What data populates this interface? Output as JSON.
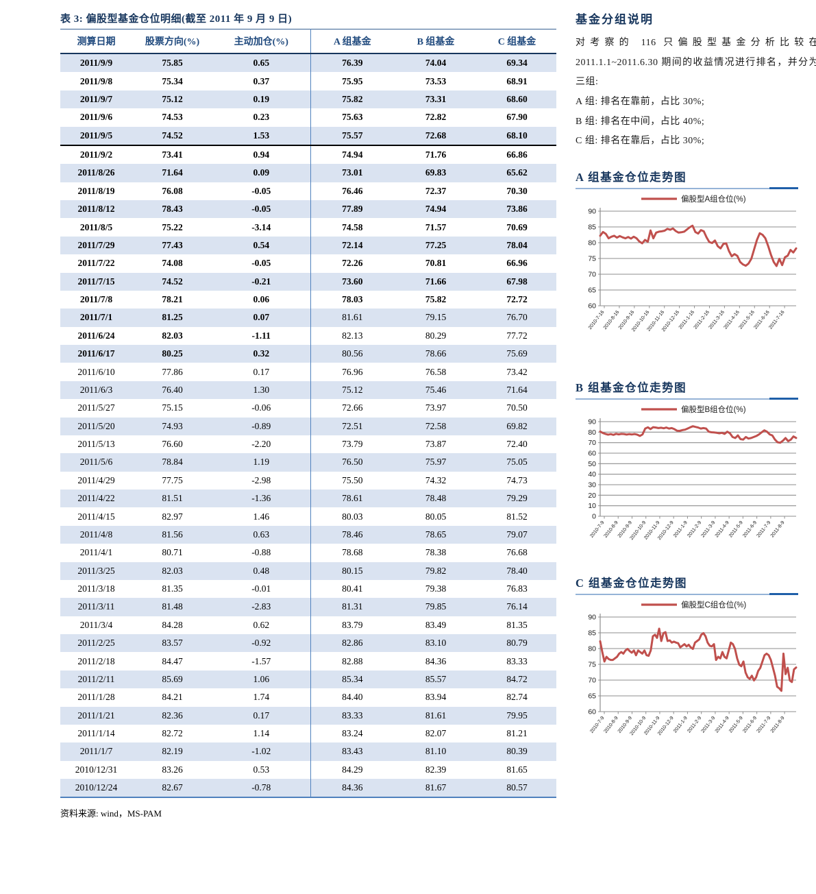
{
  "colors": {
    "navy": "#17365D",
    "header_blue": "#1F497D",
    "steel_blue": "#4F81BD",
    "row_shade": "#DAE3F1",
    "series_red": "#C0504D"
  },
  "table": {
    "title": "表 3:  偏股型基金仓位明细(截至 2011 年 9 月 9 日)",
    "columns": [
      "测算日期",
      "股票方向(%)",
      "主动加仓(%)",
      "A 组基金",
      "B 组基金",
      "C 组基金"
    ],
    "rows": [
      {
        "date": "2011/9/9",
        "dir": "75.85",
        "add": "0.65",
        "a": "76.39",
        "b": "74.04",
        "c": "69.34",
        "bold": "all"
      },
      {
        "date": "2011/9/8",
        "dir": "75.34",
        "add": "0.37",
        "a": "75.95",
        "b": "73.53",
        "c": "68.91",
        "bold": "all"
      },
      {
        "date": "2011/9/7",
        "dir": "75.12",
        "add": "0.19",
        "a": "75.82",
        "b": "73.31",
        "c": "68.60",
        "bold": "all"
      },
      {
        "date": "2011/9/6",
        "dir": "74.53",
        "add": "0.23",
        "a": "75.63",
        "b": "72.82",
        "c": "67.90",
        "bold": "all"
      },
      {
        "date": "2011/9/5",
        "dir": "74.52",
        "add": "1.53",
        "a": "75.57",
        "b": "72.68",
        "c": "68.10",
        "bold": "all",
        "sep": true
      },
      {
        "date": "2011/9/2",
        "dir": "73.41",
        "add": "0.94",
        "a": "74.94",
        "b": "71.76",
        "c": "66.86",
        "bold": "all"
      },
      {
        "date": "2011/8/26",
        "dir": "71.64",
        "add": "0.09",
        "a": "73.01",
        "b": "69.83",
        "c": "65.62",
        "bold": "all"
      },
      {
        "date": "2011/8/19",
        "dir": "76.08",
        "add": "-0.05",
        "a": "76.46",
        "b": "72.37",
        "c": "70.30",
        "bold": "all"
      },
      {
        "date": "2011/8/12",
        "dir": "78.43",
        "add": "-0.05",
        "a": "77.89",
        "b": "74.94",
        "c": "73.86",
        "bold": "all"
      },
      {
        "date": "2011/8/5",
        "dir": "75.22",
        "add": "-3.14",
        "a": "74.58",
        "b": "71.57",
        "c": "70.69",
        "bold": "all"
      },
      {
        "date": "2011/7/29",
        "dir": "77.43",
        "add": "0.54",
        "a": "72.14",
        "b": "77.25",
        "c": "78.04",
        "bold": "all"
      },
      {
        "date": "2011/7/22",
        "dir": "74.08",
        "add": "-0.05",
        "a": "72.26",
        "b": "70.81",
        "c": "66.96",
        "bold": "all"
      },
      {
        "date": "2011/7/15",
        "dir": "74.52",
        "add": "-0.21",
        "a": "73.60",
        "b": "71.66",
        "c": "67.98",
        "bold": "all"
      },
      {
        "date": "2011/7/8",
        "dir": "78.21",
        "add": "0.06",
        "a": "78.03",
        "b": "75.82",
        "c": "72.72",
        "bold": "all"
      },
      {
        "date": "2011/7/1",
        "dir": "81.25",
        "add": "0.07",
        "a": "81.61",
        "b": "79.15",
        "c": "76.70",
        "bold": "left"
      },
      {
        "date": "2011/6/24",
        "dir": "82.03",
        "add": "-1.11",
        "a": "82.13",
        "b": "80.29",
        "c": "77.72",
        "bold": "left"
      },
      {
        "date": "2011/6/17",
        "dir": "80.25",
        "add": "0.32",
        "a": "80.56",
        "b": "78.66",
        "c": "75.69",
        "bold": "left"
      },
      {
        "date": "2011/6/10",
        "dir": "77.86",
        "add": "0.17",
        "a": "76.96",
        "b": "76.58",
        "c": "73.42",
        "bold": "none"
      },
      {
        "date": "2011/6/3",
        "dir": "76.40",
        "add": "1.30",
        "a": "75.12",
        "b": "75.46",
        "c": "71.64",
        "bold": "none"
      },
      {
        "date": "2011/5/27",
        "dir": "75.15",
        "add": "-0.06",
        "a": "72.66",
        "b": "73.97",
        "c": "70.50",
        "bold": "none"
      },
      {
        "date": "2011/5/20",
        "dir": "74.93",
        "add": "-0.89",
        "a": "72.51",
        "b": "72.58",
        "c": "69.82",
        "bold": "none"
      },
      {
        "date": "2011/5/13",
        "dir": "76.60",
        "add": "-2.20",
        "a": "73.79",
        "b": "73.87",
        "c": "72.40",
        "bold": "none"
      },
      {
        "date": "2011/5/6",
        "dir": "78.84",
        "add": "1.19",
        "a": "76.50",
        "b": "75.97",
        "c": "75.05",
        "bold": "none"
      },
      {
        "date": "2011/4/29",
        "dir": "77.75",
        "add": "-2.98",
        "a": "75.50",
        "b": "74.32",
        "c": "74.73",
        "bold": "none"
      },
      {
        "date": "2011/4/22",
        "dir": "81.51",
        "add": "-1.36",
        "a": "78.61",
        "b": "78.48",
        "c": "79.29",
        "bold": "none"
      },
      {
        "date": "2011/4/15",
        "dir": "82.97",
        "add": "1.46",
        "a": "80.03",
        "b": "80.05",
        "c": "81.52",
        "bold": "none"
      },
      {
        "date": "2011/4/8",
        "dir": "81.56",
        "add": "0.63",
        "a": "78.46",
        "b": "78.65",
        "c": "79.07",
        "bold": "none"
      },
      {
        "date": "2011/4/1",
        "dir": "80.71",
        "add": "-0.88",
        "a": "78.68",
        "b": "78.38",
        "c": "76.68",
        "bold": "none"
      },
      {
        "date": "2011/3/25",
        "dir": "82.03",
        "add": "0.48",
        "a": "80.15",
        "b": "79.82",
        "c": "78.40",
        "bold": "none"
      },
      {
        "date": "2011/3/18",
        "dir": "81.35",
        "add": "-0.01",
        "a": "80.41",
        "b": "79.38",
        "c": "76.83",
        "bold": "none"
      },
      {
        "date": "2011/3/11",
        "dir": "81.48",
        "add": "-2.83",
        "a": "81.31",
        "b": "79.85",
        "c": "76.14",
        "bold": "none"
      },
      {
        "date": "2011/3/4",
        "dir": "84.28",
        "add": "0.62",
        "a": "83.79",
        "b": "83.49",
        "c": "81.35",
        "bold": "none"
      },
      {
        "date": "2011/2/25",
        "dir": "83.57",
        "add": "-0.92",
        "a": "82.86",
        "b": "83.10",
        "c": "80.79",
        "bold": "none"
      },
      {
        "date": "2011/2/18",
        "dir": "84.47",
        "add": "-1.57",
        "a": "82.88",
        "b": "84.36",
        "c": "83.33",
        "bold": "none"
      },
      {
        "date": "2011/2/11",
        "dir": "85.69",
        "add": "1.06",
        "a": "85.34",
        "b": "85.57",
        "c": "84.72",
        "bold": "none"
      },
      {
        "date": "2011/1/28",
        "dir": "84.21",
        "add": "1.74",
        "a": "84.40",
        "b": "83.94",
        "c": "82.74",
        "bold": "none"
      },
      {
        "date": "2011/1/21",
        "dir": "82.36",
        "add": "0.17",
        "a": "83.33",
        "b": "81.61",
        "c": "79.95",
        "bold": "none"
      },
      {
        "date": "2011/1/14",
        "dir": "82.72",
        "add": "1.14",
        "a": "83.24",
        "b": "82.07",
        "c": "81.21",
        "bold": "none"
      },
      {
        "date": "2011/1/7",
        "dir": "82.19",
        "add": "-1.02",
        "a": "83.43",
        "b": "81.10",
        "c": "80.39",
        "bold": "none"
      },
      {
        "date": "2010/12/31",
        "dir": "83.26",
        "add": "0.53",
        "a": "84.29",
        "b": "82.39",
        "c": "81.65",
        "bold": "none"
      },
      {
        "date": "2010/12/24",
        "dir": "82.67",
        "add": "-0.78",
        "a": "84.36",
        "b": "81.67",
        "c": "80.57",
        "bold": "none"
      }
    ],
    "source_label": "资料来源:",
    "source_value": "wind，MS-PAM"
  },
  "sidebar": {
    "note": {
      "title": "基金分组说明",
      "para": "对考察的 116 只偏股型基金分析比较在 2011.1.1~2011.6.30 期间的收益情况进行排名，并分为三组:",
      "groups": [
        "A 组:  排名在靠前，占比 30%;",
        "B 组:  排名在中间，占比 40%;",
        "C 组:  排名在靠后，占比 30%;"
      ]
    }
  },
  "chart_data": [
    {
      "type": "line",
      "title": "A 组基金仓位走势图",
      "legend": "偏股型A组仓位(%)",
      "line_color": "#C0504D",
      "ylim": [
        60,
        90
      ],
      "yticks": [
        60,
        65,
        70,
        75,
        80,
        85,
        90
      ],
      "grid": true,
      "legend_position": "top",
      "x_tick_labels": [
        "2010-7-16",
        "2010-8-16",
        "2010-9-16",
        "2010-10-16",
        "2010-11-16",
        "2010-12-16",
        "2011-1-16",
        "2011-2-16",
        "2011-3-16",
        "2011-4-16",
        "2011-5-16",
        "2011-6-16",
        "2011-7-16"
      ],
      "values": [
        82.2,
        83.4,
        82.8,
        81.4,
        81.9,
        82.2,
        81.6,
        82.1,
        81.7,
        81.4,
        81.8,
        81.3,
        81.9,
        81.4,
        80.4,
        79.8,
        80.9,
        80.3,
        83.9,
        81.4,
        83.2,
        83.5,
        83.6,
        83.8,
        84.4,
        84.1,
        84.5,
        83.7,
        83.2,
        83.3,
        83.5,
        84.2,
        84.9,
        85.4,
        83.4,
        82.9,
        84.0,
        83.6,
        81.7,
        80.2,
        79.9,
        80.7,
        78.9,
        78.2,
        79.6,
        79.8,
        77.4,
        75.7,
        76.4,
        75.8,
        73.9,
        73.1,
        72.7,
        73.4,
        74.9,
        77.9,
        80.9,
        83.0,
        82.5,
        81.4,
        79.0,
        76.2,
        73.9,
        72.6,
        74.9,
        72.9,
        75.4,
        75.9,
        77.7,
        76.9,
        78.2
      ]
    },
    {
      "type": "line",
      "title": "B 组基金仓位走势图",
      "legend": "偏股型B组仓位(%)",
      "line_color": "#C0504D",
      "ylim": [
        0,
        90
      ],
      "yticks": [
        0,
        10,
        20,
        30,
        40,
        50,
        60,
        70,
        80,
        90
      ],
      "grid": true,
      "legend_position": "top",
      "x_tick_labels": [
        "2010-7-9",
        "2010-8-9",
        "2010-9-9",
        "2010-10-9",
        "2010-11-9",
        "2010-12-9",
        "2011-1-9",
        "2011-2-9",
        "2011-3-9",
        "2011-4-9",
        "2011-5-9",
        "2011-6-9",
        "2011-7-9",
        "2011-8-9"
      ],
      "values": [
        80.6,
        79.2,
        78.3,
        77.6,
        78.1,
        77.4,
        78.4,
        77.9,
        78.3,
        78.2,
        77.7,
        78.1,
        77.8,
        78.2,
        77.6,
        76.4,
        77.9,
        83.4,
        84.6,
        82.9,
        84.7,
        84.4,
        83.9,
        84.2,
        83.7,
        84.4,
        83.4,
        83.9,
        82.9,
        81.4,
        81.2,
        81.9,
        82.4,
        83.4,
        84.6,
        85.6,
        85.0,
        84.4,
        83.4,
        83.9,
        83.4,
        80.4,
        79.9,
        79.7,
        79.4,
        78.9,
        79.4,
        78.4,
        80.4,
        78.9,
        75.4,
        74.4,
        76.9,
        73.4,
        72.9,
        75.4,
        73.9,
        74.4,
        75.4,
        76.4,
        77.9,
        79.9,
        81.7,
        80.4,
        77.9,
        76.9,
        72.9,
        70.4,
        69.9,
        71.9,
        74.4,
        71.4,
        72.9,
        75.9,
        74.5
      ]
    },
    {
      "type": "line",
      "title": "C 组基金仓位走势图",
      "legend": "偏股型C组仓位(%)",
      "line_color": "#C0504D",
      "ylim": [
        60,
        90
      ],
      "yticks": [
        60,
        65,
        70,
        75,
        80,
        85,
        90
      ],
      "grid": true,
      "legend_position": "top",
      "x_tick_labels": [
        "2010-7-9",
        "2010-8-9",
        "2010-9-9",
        "2010-10-9",
        "2010-11-9",
        "2010-12-9",
        "2011-1-9",
        "2011-2-9",
        "2011-3-9",
        "2011-4-9",
        "2011-5-9",
        "2011-6-9",
        "2011-7-9",
        "2011-8-9"
      ],
      "values": [
        82.3,
        78.9,
        75.9,
        77.4,
        76.7,
        76.4,
        76.4,
        76.9,
        77.4,
        78.4,
        78.9,
        78.4,
        79.4,
        79.9,
        79.2,
        78.7,
        79.4,
        77.9,
        79.4,
        78.9,
        78.4,
        79.4,
        77.9,
        77.7,
        79.4,
        83.9,
        84.4,
        83.4,
        86.3,
        82.4,
        84.9,
        85.2,
        82.4,
        82.6,
        81.9,
        82.2,
        81.9,
        81.7,
        80.4,
        80.9,
        81.4,
        80.7,
        81.2,
        80.4,
        79.9,
        81.9,
        82.4,
        82.9,
        84.4,
        84.9,
        83.9,
        81.9,
        80.9,
        80.7,
        81.4,
        76.4,
        77.4,
        76.9,
        78.9,
        77.4,
        76.9,
        79.4,
        81.9,
        81.4,
        79.9,
        76.9,
        74.9,
        74.4,
        75.9,
        72.4,
        70.9,
        70.4,
        71.4,
        69.9,
        70.9,
        72.9,
        73.9,
        75.9,
        77.9,
        78.4,
        77.9,
        76.4,
        73.9,
        71.4,
        67.9,
        67.4,
        66.6,
        78.4,
        71.9,
        73.9,
        69.9,
        69.4,
        73.4,
        74.0
      ]
    }
  ]
}
